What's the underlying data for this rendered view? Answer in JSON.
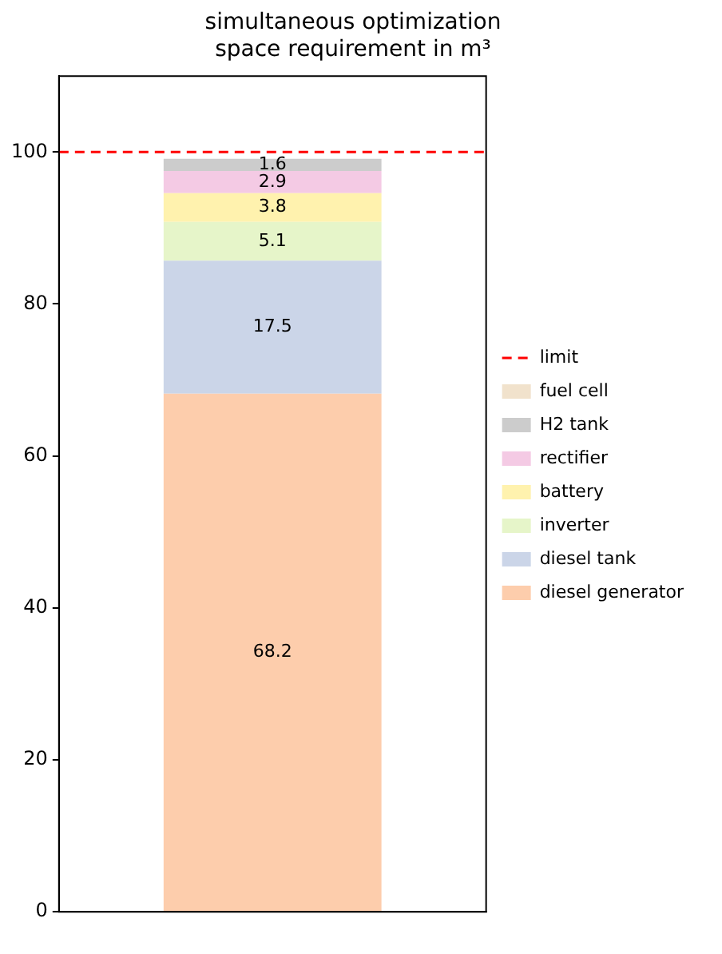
{
  "chart_data": {
    "type": "bar",
    "title": "simultaneous optimization\nspace requirement in m³",
    "categories": [
      null
    ],
    "stacked": true,
    "ylim": [
      0,
      110
    ],
    "yticks": [
      0,
      20,
      40,
      60,
      80,
      100
    ],
    "grid": false,
    "legend": "right",
    "series": [
      {
        "name": "diesel generator",
        "color": "#fdcdac",
        "values": [
          68.2
        ],
        "value_labels": [
          "68.2"
        ]
      },
      {
        "name": "diesel tank",
        "color": "#cbd5e8",
        "values": [
          17.5
        ],
        "value_labels": [
          "17.5"
        ]
      },
      {
        "name": "inverter",
        "color": "#e6f5c9",
        "values": [
          5.1
        ],
        "value_labels": [
          "5.1"
        ]
      },
      {
        "name": "battery",
        "color": "#fff2ae",
        "values": [
          3.8
        ],
        "value_labels": [
          "3.8"
        ]
      },
      {
        "name": "rectifier",
        "color": "#f4cae4",
        "values": [
          2.9
        ],
        "value_labels": [
          "2.9"
        ]
      },
      {
        "name": "H2 tank",
        "color": "#cccccc",
        "values": [
          1.6
        ],
        "value_labels": [
          "1.6"
        ]
      },
      {
        "name": "fuel cell",
        "color": "#f1e2cc",
        "values": [
          0
        ],
        "value_labels": [
          null
        ]
      }
    ],
    "ref_lines": [
      {
        "axis": "y",
        "value": 100,
        "label": "limit",
        "color": "#ff0000",
        "line_style": "dashed"
      }
    ]
  }
}
